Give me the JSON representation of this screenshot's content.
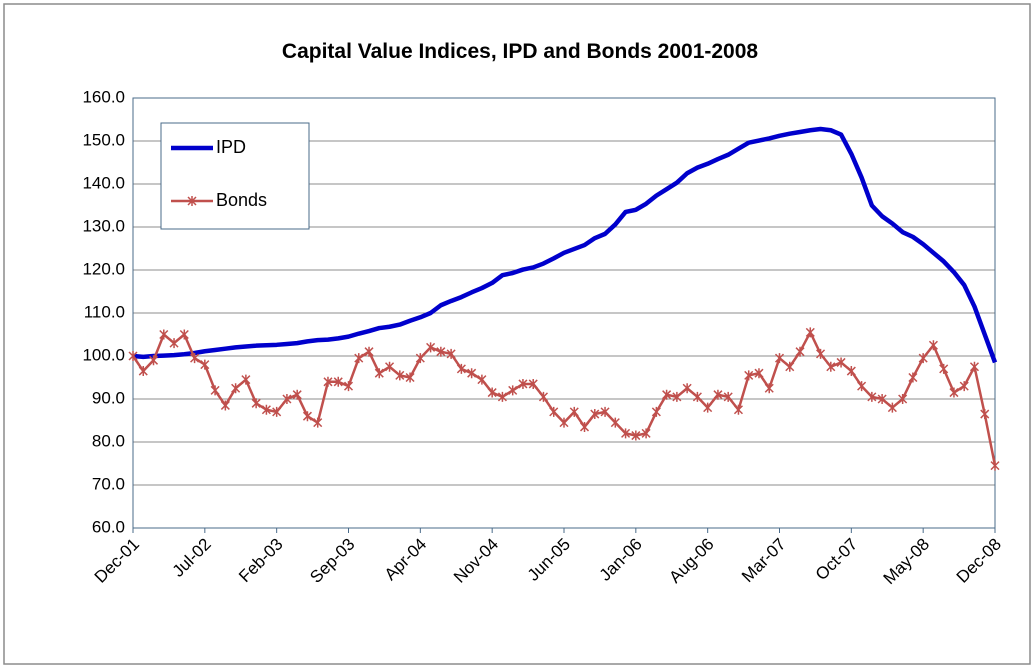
{
  "chart_data": {
    "type": "line",
    "title": "Capital Value Indices, IPD and Bonds 2001-2008",
    "categories": [
      "Dec-01",
      null,
      null,
      null,
      null,
      null,
      null,
      "Jul-02",
      null,
      null,
      null,
      null,
      null,
      null,
      "Feb-03",
      null,
      null,
      null,
      null,
      null,
      null,
      "Sep-03",
      null,
      null,
      null,
      null,
      null,
      null,
      "Apr-04",
      null,
      null,
      null,
      null,
      null,
      null,
      "Nov-04",
      null,
      null,
      null,
      null,
      null,
      null,
      "Jun-05",
      null,
      null,
      null,
      null,
      null,
      null,
      "Jan-06",
      null,
      null,
      null,
      null,
      null,
      null,
      "Aug-06",
      null,
      null,
      null,
      null,
      null,
      null,
      "Mar-07",
      null,
      null,
      null,
      null,
      null,
      null,
      "Oct-07",
      null,
      null,
      null,
      null,
      null,
      null,
      "May-08",
      null,
      null,
      null,
      null,
      null,
      null,
      "Dec-08"
    ],
    "series": [
      {
        "name": "IPD",
        "color": "#0000cc",
        "marker": "none",
        "values": [
          100,
          99.8,
          100,
          100.1,
          100.2,
          100.4,
          100.7,
          101.1,
          101.4,
          101.7,
          102,
          102.2,
          102.4,
          102.5,
          102.6,
          102.8,
          103,
          103.4,
          103.7,
          103.8,
          104.1,
          104.5,
          105.2,
          105.8,
          106.5,
          106.8,
          107.3,
          108.2,
          109,
          110,
          111.8,
          112.8,
          113.7,
          114.8,
          115.8,
          117,
          118.8,
          119.3,
          120.1,
          120.6,
          121.5,
          122.7,
          124,
          124.9,
          125.8,
          127.4,
          128.4,
          130.6,
          133.5,
          134,
          135.4,
          137.3,
          138.8,
          140.3,
          142.5,
          143.8,
          144.7,
          145.8,
          146.8,
          148.2,
          149.6,
          150.1,
          150.6,
          151.2,
          151.7,
          152.1,
          152.5,
          152.8,
          152.5,
          151.5,
          147,
          141.5,
          135,
          132.5,
          130.8,
          128.8,
          127.7,
          126,
          124,
          122,
          119.5,
          116.5,
          111.5,
          105,
          98.5
        ]
      },
      {
        "name": "Bonds",
        "color": "#c0504d",
        "marker": "star",
        "values": [
          100,
          96.5,
          99,
          105,
          103,
          105,
          99.5,
          98,
          92,
          88.5,
          92.5,
          94.5,
          89,
          87.5,
          87,
          90,
          91,
          86,
          84.5,
          94,
          94,
          93,
          99.5,
          101,
          96,
          97.5,
          95.5,
          95,
          99.5,
          102,
          101,
          100.5,
          97,
          96,
          94.5,
          91.5,
          90.5,
          92,
          93.5,
          93.5,
          90.5,
          87,
          84.5,
          87,
          83.5,
          86.5,
          87,
          84.5,
          82,
          81.5,
          82,
          87,
          91,
          90.5,
          92.5,
          90.5,
          88,
          91,
          90.5,
          87.5,
          95.5,
          96,
          92.5,
          99.5,
          97.5,
          101,
          105.5,
          100.5,
          97.5,
          98.5,
          96.5,
          93,
          90.5,
          90,
          88,
          90,
          95,
          99.5,
          102.5,
          97,
          91.5,
          93,
          97.5,
          86.5,
          74.5
        ]
      }
    ],
    "ylim": [
      60,
      160
    ],
    "yticks": [
      {
        "value": 60,
        "label": "60.0"
      },
      {
        "value": 70,
        "label": "70.0"
      },
      {
        "value": 80,
        "label": "80.0"
      },
      {
        "value": 90,
        "label": "90.0"
      },
      {
        "value": 100,
        "label": "100.0"
      },
      {
        "value": 110,
        "label": "110.0"
      },
      {
        "value": 120,
        "label": "120.0"
      },
      {
        "value": 130,
        "label": "130.0"
      },
      {
        "value": 140,
        "label": "140.0"
      },
      {
        "value": 150,
        "label": "150.0"
      },
      {
        "value": 160,
        "label": "160.0"
      }
    ],
    "grid": true,
    "legend": "upper left"
  }
}
